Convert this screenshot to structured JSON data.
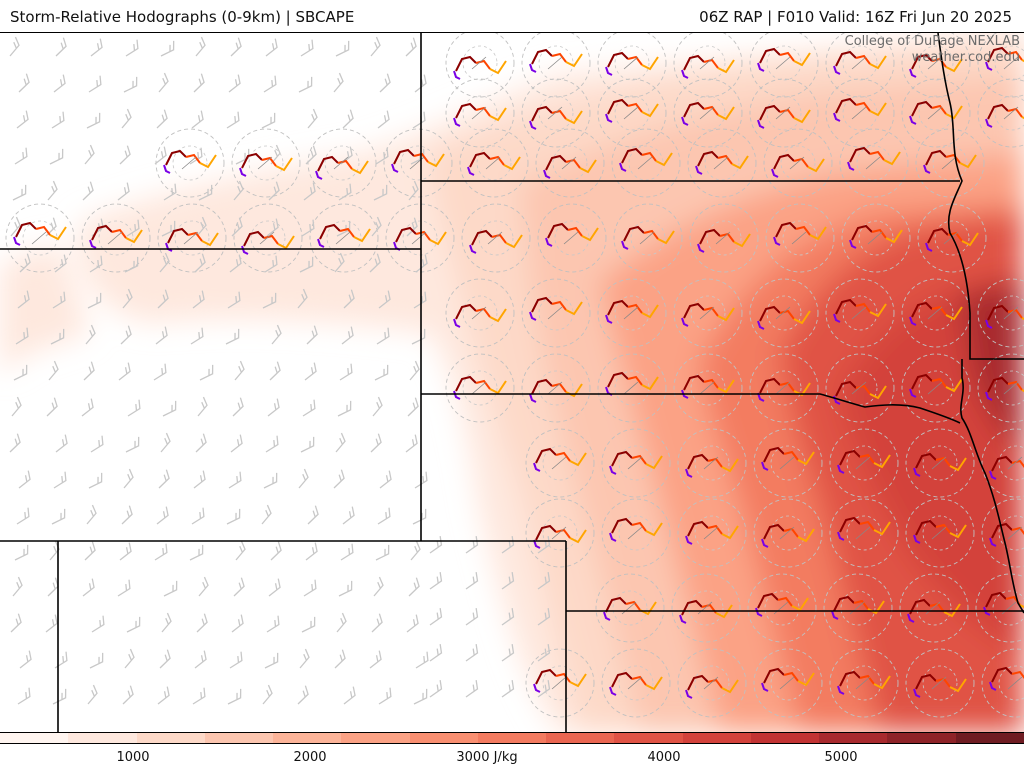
{
  "header": {
    "title_left": "Storm-Relative Hodographs (0-9km) | SBCAPE",
    "title_right": "06Z RAP | F010 Valid: 16Z Fri Jun 20 2025"
  },
  "credit": {
    "line1": "College of DuPage NEXLAB",
    "line2": "weather.cod.edu"
  },
  "colorbar": {
    "colors": [
      "#fff5f0",
      "#fee8de",
      "#fdd9c8",
      "#fcc6b0",
      "#fcb499",
      "#fba285",
      "#f98f71",
      "#f37b60",
      "#ea6651",
      "#e05345",
      "#d3423b",
      "#c23333",
      "#a82a2e",
      "#8e2328",
      "#6f1c22"
    ],
    "tick_labels": [
      {
        "label": "1000",
        "value": 1000
      },
      {
        "label": "2000",
        "value": 2000
      },
      {
        "label": "3000 J/kg",
        "value": 3000
      },
      {
        "label": "4000",
        "value": 4000
      },
      {
        "label": "5000",
        "value": 5000
      }
    ]
  },
  "map": {
    "field": "SBCAPE",
    "units": "J/kg",
    "hodograph_colors": [
      "#7a00e6",
      "#8b0000",
      "#ff4500",
      "#ffa500"
    ],
    "barb_color": "#c8c8c8",
    "boundary_color": "#000000"
  }
}
